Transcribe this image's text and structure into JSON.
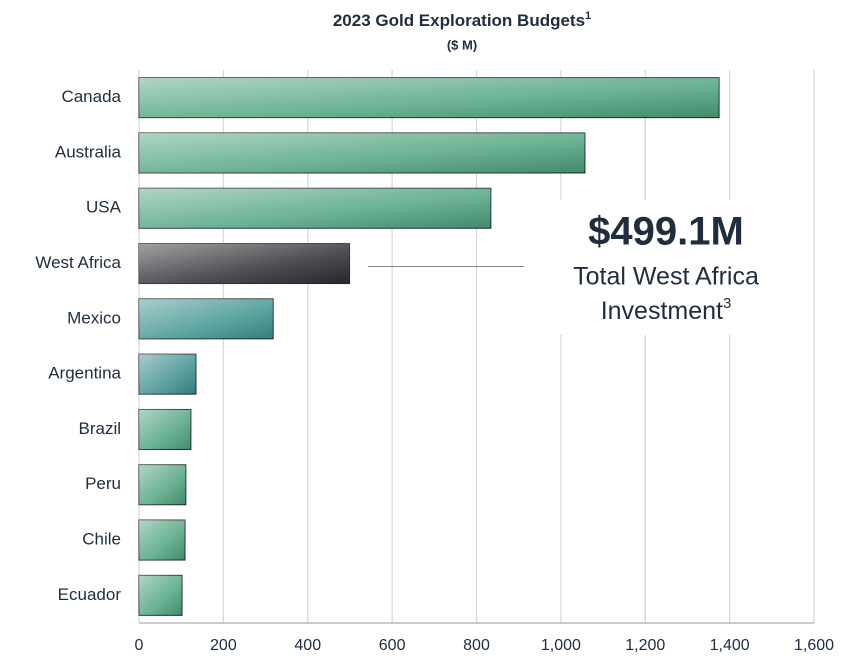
{
  "chart_data": {
    "type": "barh",
    "title": "2023 Gold Exploration Budgets",
    "title_note": "1",
    "subtitle": "($ M)",
    "categories": [
      "Canada",
      "Australia",
      "USA",
      "West Africa",
      "Mexico",
      "Argentina",
      "Brazil",
      "Peru",
      "Chile",
      "Ecuador"
    ],
    "values": [
      1375,
      1057,
      834,
      499.1,
      318,
      135,
      123,
      111,
      109,
      102
    ],
    "colors": [
      "#4fa37f",
      "#4fa37f",
      "#4fa37f",
      "#2e2e33",
      "#3f9490",
      "#3f8f8f",
      "#4fa37f",
      "#4fa37f",
      "#4fa37f",
      "#4fa37f"
    ],
    "xlim": [
      0,
      1600
    ],
    "xticks": [
      0,
      200,
      400,
      600,
      800,
      {
        "value": 1000,
        "label": "1,000"
      },
      {
        "value": 1200,
        "label": "1,200"
      },
      {
        "value": 1400,
        "label": "1,400"
      },
      {
        "value": 1600,
        "label": "1,600"
      }
    ],
    "grid": true,
    "annotation": {
      "value_text": "$499.1M",
      "line1": "Total West Africa",
      "line2": "Investment",
      "note": "3",
      "color": "#6cc59c"
    }
  }
}
